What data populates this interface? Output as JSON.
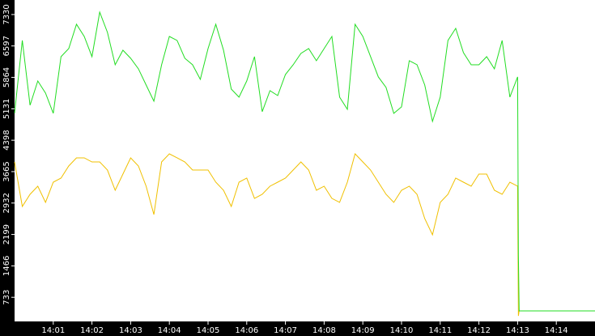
{
  "chart_data": {
    "type": "line",
    "x": [
      0,
      0.2,
      0.4,
      0.6,
      0.8,
      1,
      1.2,
      1.4,
      1.6,
      1.8,
      2,
      2.2,
      2.4,
      2.6,
      2.8,
      3,
      3.2,
      3.4,
      3.6,
      3.8,
      4,
      4.2,
      4.4,
      4.6,
      4.8,
      5,
      5.2,
      5.4,
      5.6,
      5.8,
      6,
      6.2,
      6.4,
      6.6,
      6.8,
      7,
      7.2,
      7.4,
      7.6,
      7.8,
      8,
      8.2,
      8.4,
      8.6,
      8.8,
      9,
      9.2,
      9.4,
      9.6,
      9.8,
      10,
      10.2,
      10.4,
      10.6,
      10.8,
      11,
      11.2,
      11.4,
      11.6,
      11.8,
      12,
      12.2,
      12.4,
      12.6,
      12.8,
      13,
      13.02,
      13.04,
      15
    ],
    "series": [
      {
        "color": "#22dd22",
        "values": [
          5025,
          6725,
          5214,
          5780,
          5497,
          5025,
          6347,
          6536,
          7103,
          6819,
          6347,
          7386,
          6914,
          6158,
          6498,
          6309,
          6064,
          5686,
          5308,
          6158,
          6819,
          6725,
          6309,
          6158,
          5818,
          6536,
          7103,
          6498,
          5591,
          5403,
          5780,
          6347,
          5063,
          5554,
          5440,
          5931,
          6158,
          6423,
          6536,
          6253,
          6536,
          6819,
          5403,
          5119,
          7103,
          6819,
          6347,
          5875,
          5629,
          5025,
          5176,
          6253,
          6158,
          5686,
          4836,
          5403,
          6725,
          7008,
          6441,
          6158,
          6158,
          6347,
          6064,
          6725,
          5403,
          5875,
          1719,
          416,
          416
        ]
      },
      {
        "color": "#f0c000",
        "values": [
          3891,
          2852,
          3136,
          3325,
          2947,
          3419,
          3514,
          3797,
          3986,
          3986,
          3891,
          3891,
          3702,
          3230,
          3608,
          3986,
          3797,
          3325,
          2664,
          3891,
          4080,
          3986,
          3891,
          3702,
          3702,
          3702,
          3419,
          3230,
          2852,
          3419,
          3514,
          3041,
          3136,
          3325,
          3419,
          3514,
          3702,
          3891,
          3702,
          3230,
          3325,
          3041,
          2947,
          3419,
          4080,
          3891,
          3702,
          3419,
          3136,
          2947,
          3230,
          3325,
          3136,
          2569,
          2191,
          2947,
          3136,
          3514,
          3419,
          3325,
          3608,
          3608,
          3230,
          3136,
          3419,
          3325,
          300,
          416,
          416
        ]
      }
    ],
    "xlim": [
      0,
      15
    ],
    "xticks": [
      {
        "value": 1,
        "label": "14:01"
      },
      {
        "value": 2,
        "label": "14:02"
      },
      {
        "value": 3,
        "label": "14:03"
      },
      {
        "value": 4,
        "label": "14:04"
      },
      {
        "value": 5,
        "label": "14:05"
      },
      {
        "value": 6,
        "label": "14:06"
      },
      {
        "value": 7,
        "label": "14:07"
      },
      {
        "value": 8,
        "label": "14:08"
      },
      {
        "value": 9,
        "label": "14:09"
      },
      {
        "value": 10,
        "label": "14:10"
      },
      {
        "value": 11,
        "label": "14:11"
      },
      {
        "value": 12,
        "label": "14:12"
      },
      {
        "value": 13,
        "label": "14:13"
      },
      {
        "value": 14,
        "label": "14:14"
      }
    ],
    "ylim": [
      170,
      7669
    ],
    "yticks": [
      733,
      1466,
      2199,
      2932,
      3665,
      4398,
      5131,
      5864,
      6597,
      7330
    ]
  }
}
